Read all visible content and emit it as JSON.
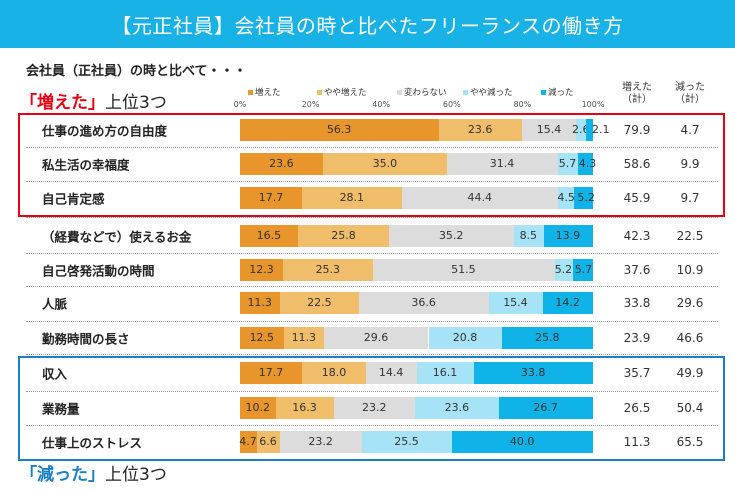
{
  "title": "【元正社員】会社員の時と比べたフリーランスの働き方",
  "subtitle": "会社員（正社員）の時と比べて・・・",
  "top_increase_label": {
    "quote": "「増えた」",
    "rest": "上位3つ"
  },
  "top_decrease_label": {
    "quote": "「減った」",
    "rest": "上位3つ"
  },
  "chart_data": {
    "type": "bar",
    "orientation": "horizontal",
    "stacked": true,
    "xlim": [
      0,
      100
    ],
    "x_ticks": [
      "0%",
      "20%",
      "40%",
      "60%",
      "80%",
      "100%"
    ],
    "categories": [
      "仕事の進め方の自由度",
      "私生活の幸福度",
      "自己肯定感",
      "（経費などで）使えるお金",
      "自己啓発活動の時間",
      "人脈",
      "勤務時間の長さ",
      "収入",
      "業務量",
      "仕事上のストレス"
    ],
    "series": [
      {
        "name": "増えた",
        "color": "#e8952c",
        "values": [
          56.3,
          23.6,
          17.7,
          16.5,
          12.3,
          11.3,
          12.5,
          17.7,
          10.2,
          4.7
        ]
      },
      {
        "name": "やや増えた",
        "color": "#f0bd6a",
        "values": [
          23.6,
          35.0,
          28.1,
          25.8,
          25.3,
          22.5,
          11.3,
          18.0,
          16.3,
          6.6
        ]
      },
      {
        "name": "変わらない",
        "color": "#dcdcdc",
        "values": [
          15.4,
          31.4,
          44.4,
          35.2,
          51.5,
          36.6,
          29.6,
          14.4,
          23.2,
          23.2
        ]
      },
      {
        "name": "やや減った",
        "color": "#a6e3f6",
        "values": [
          2.6,
          5.7,
          4.5,
          8.5,
          5.2,
          15.4,
          20.8,
          16.1,
          23.6,
          25.5
        ]
      },
      {
        "name": "減った",
        "color": "#0fb3e8",
        "values": [
          2.1,
          4.3,
          5.2,
          13.9,
          5.7,
          14.2,
          25.8,
          33.8,
          26.7,
          40.0
        ]
      }
    ],
    "totals_headers": {
      "increase": "増えた（計）",
      "decrease": "減った（計）"
    },
    "totals_increase": [
      79.9,
      58.6,
      45.9,
      42.3,
      37.6,
      33.8,
      23.9,
      35.7,
      26.5,
      11.3
    ],
    "totals_decrease": [
      4.7,
      9.9,
      9.7,
      22.5,
      10.9,
      29.6,
      46.6,
      49.9,
      50.4,
      65.5
    ],
    "highlight_colors": {
      "increase_box": "#e60012",
      "decrease_box": "#1a7fc4"
    }
  }
}
